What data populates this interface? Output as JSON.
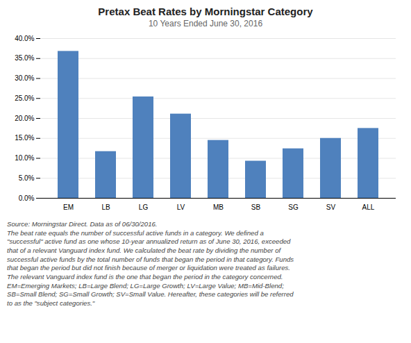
{
  "chart_data": {
    "type": "bar",
    "title": "Pretax Beat Rates by Morningstar Category",
    "subtitle": "10 Years Ended June 30, 2016",
    "categories": [
      "EM",
      "LB",
      "LG",
      "LV",
      "MB",
      "SB",
      "SG",
      "SV",
      "ALL"
    ],
    "values": [
      0.368,
      0.117,
      0.254,
      0.211,
      0.145,
      0.093,
      0.124,
      0.15,
      0.175
    ],
    "color": "#4f81bd",
    "ylim": [
      0,
      0.4
    ],
    "yticks": [
      {
        "value": 0.0,
        "label": "0.0%"
      },
      {
        "value": 0.05,
        "label": "5.0%"
      },
      {
        "value": 0.1,
        "label": "10.0%"
      },
      {
        "value": 0.15,
        "label": "15.0%"
      },
      {
        "value": 0.2,
        "label": "20.0%"
      },
      {
        "value": 0.25,
        "label": "25.0%"
      },
      {
        "value": 0.3,
        "label": "30.0%"
      },
      {
        "value": 0.35,
        "label": "35.0%"
      },
      {
        "value": 0.4,
        "label": "40.0%"
      }
    ],
    "grid": true,
    "footnote": [
      "Source: Morningstar Direct. Data as of 06/30/2016.",
      "The beat rate equals the number of successful active funds in a category. We defined a",
      "\"successful\" active fund as one whose 10-year annualized return as of June 30, 2016, exceeded",
      "that of a relevant Vanguard index fund. We calculated the beat rate by dividing the number of",
      "successful active funds by the total number of funds that began the period in that category. Funds",
      "that began the period but did not finish because of merger or liquidation were treated as failures.",
      "The relevant Vanguard index fund is the one that began the period in the category concerned.",
      "EM=Emerging Markets; LB=Large Blend; LG=Large Growth; LV=Large Value; MB=Mid-Blend;",
      "SB=Small Blend; SG=Small Growth; SV=Small Value. Hereafter, these categories will be referred",
      "to as the \"subject categories.\""
    ]
  }
}
